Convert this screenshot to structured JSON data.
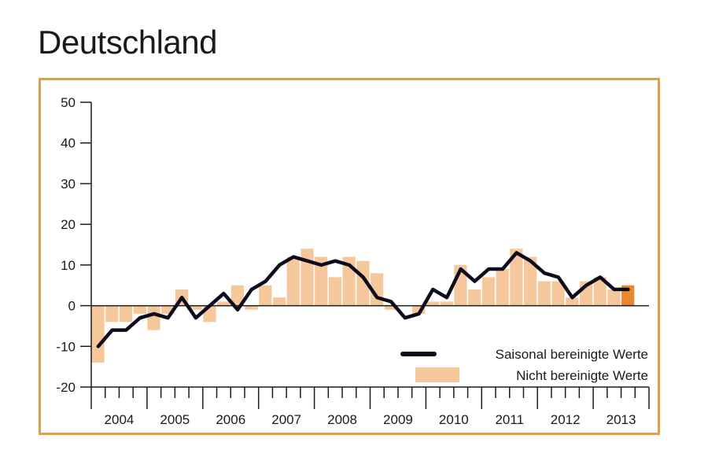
{
  "title": "Deutschland",
  "colors": {
    "frame": "#e0a04a",
    "bar": "#f7c79c",
    "bar_highlight": "#e8892f",
    "line": "#0c0c1e",
    "axis": "#1a1a1a"
  },
  "chart_data": {
    "type": "bar",
    "title": "",
    "xlabel": "",
    "ylabel": "",
    "ylim": [
      -20,
      50
    ],
    "yticks": [
      -20,
      -10,
      0,
      10,
      20,
      30,
      40,
      50
    ],
    "years": [
      "2004",
      "2005",
      "2006",
      "2007",
      "2008",
      "2009",
      "2010",
      "2011",
      "2012",
      "2013"
    ],
    "quarters_per_year": 4,
    "grid": false,
    "legend_position": "bottom-right",
    "series": [
      {
        "name": "Saisonal bereinigte Werte",
        "kind": "line",
        "values": [
          -10,
          -6,
          -6,
          -3,
          -2,
          -3,
          2,
          -3,
          0,
          3,
          -1,
          4,
          6,
          10,
          12,
          11,
          10,
          11,
          10,
          7,
          2,
          1,
          -3,
          -2,
          4,
          2,
          9,
          6,
          9,
          9,
          13,
          11,
          8,
          7,
          2,
          5,
          7,
          4,
          4
        ]
      },
      {
        "name": "Nicht bereinigte Werte",
        "kind": "bar",
        "values": [
          -14,
          -4,
          -4,
          -2,
          -6,
          -2,
          4,
          -1,
          -4,
          1,
          5,
          -1,
          5,
          2,
          12,
          14,
          12,
          7,
          12,
          11,
          8,
          -1,
          0,
          -2,
          1,
          1,
          10,
          4,
          7,
          9,
          14,
          12,
          6,
          6,
          2,
          6,
          7,
          4,
          5
        ]
      }
    ]
  }
}
